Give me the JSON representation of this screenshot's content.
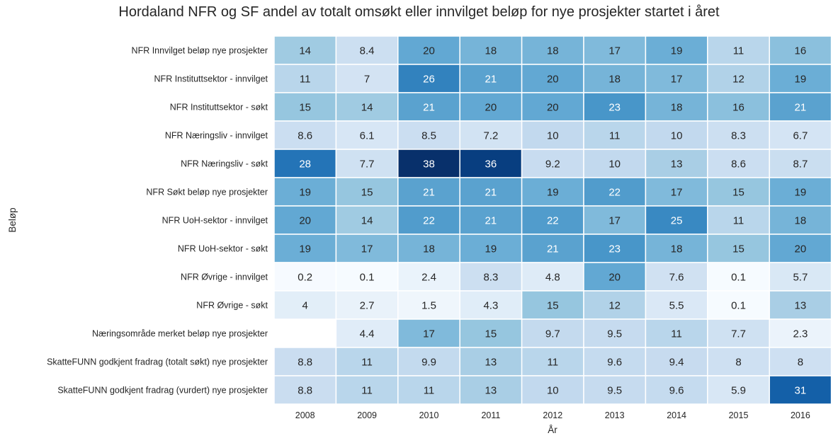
{
  "chart_data": {
    "type": "heatmap",
    "title": "Hordaland NFR og SF andel av totalt omsøkt eller innvilget beløp for nye prosjekter startet i året",
    "xlabel": "År",
    "ylabel": "Beløp",
    "columns": [
      "2008",
      "2009",
      "2010",
      "2011",
      "2012",
      "2013",
      "2014",
      "2015",
      "2016"
    ],
    "rows": [
      "NFR Innvilget beløp nye prosjekter",
      "NFR Instituttsektor - innvilget",
      "NFR Instituttsektor - søkt",
      "NFR Næringsliv - innvilget",
      "NFR Næringsliv - søkt",
      "NFR Søkt beløp nye prosjekter",
      "NFR UoH-sektor - innvilget",
      "NFR UoH-sektor - søkt",
      "NFR Øvrige - innvilget",
      "NFR Øvrige - søkt",
      "Næringsområde merket beløp nye prosjekter",
      "SkatteFUNN godkjent fradrag (totalt søkt) nye prosjekter",
      "SkatteFUNN godkjent fradrag (vurdert) nye prosjekter"
    ],
    "values": [
      [
        14,
        8.4,
        20,
        18,
        18,
        17,
        19,
        11,
        16
      ],
      [
        11,
        7,
        26,
        21,
        20,
        18,
        17,
        12,
        19
      ],
      [
        15,
        14,
        21,
        20,
        20,
        23,
        18,
        16,
        21
      ],
      [
        8.6,
        6.1,
        8.5,
        7.2,
        10,
        11,
        10,
        8.3,
        6.7
      ],
      [
        28,
        7.7,
        38,
        36,
        9.2,
        10,
        13,
        8.6,
        8.7
      ],
      [
        19,
        15,
        21,
        21,
        19,
        22,
        17,
        15,
        19
      ],
      [
        20,
        14,
        22,
        21,
        22,
        17,
        25,
        11,
        18
      ],
      [
        19,
        17,
        18,
        19,
        21,
        23,
        18,
        15,
        20
      ],
      [
        0.2,
        0.1,
        2.4,
        8.3,
        4.8,
        20,
        7.6,
        0.1,
        5.7
      ],
      [
        4,
        2.7,
        1.5,
        4.3,
        15,
        12,
        5.5,
        0.1,
        13
      ],
      [
        null,
        4.4,
        17,
        15,
        9.7,
        9.5,
        11,
        7.7,
        2.3
      ],
      [
        8.8,
        11,
        9.9,
        13,
        11,
        9.6,
        9.4,
        8,
        8
      ],
      [
        8.8,
        11,
        11,
        13,
        10,
        9.5,
        9.6,
        5.9,
        31
      ]
    ],
    "colormap": "Blues",
    "vmin": 0,
    "vmax": 38,
    "colorbar": false,
    "annotations": true
  }
}
